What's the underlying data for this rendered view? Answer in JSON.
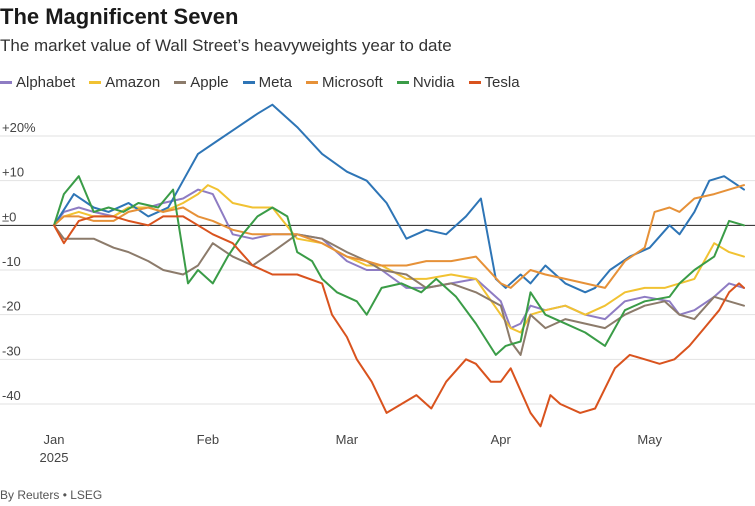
{
  "header": {
    "title": "The Magnificent Seven",
    "subtitle": "The market value of Wall Street’s heavyweights year to date"
  },
  "footer": {
    "source": "By Reuters • LSEG"
  },
  "chart_data": {
    "type": "line",
    "title": "The Magnificent Seven",
    "subtitle": "The market value of Wall Street’s heavyweights year to date",
    "xlabel": "",
    "ylabel": "",
    "x_range": [
      1,
      140
    ],
    "ylim": [
      -45,
      22
    ],
    "y_ticks": [
      {
        "value": 20,
        "label": "+20%"
      },
      {
        "value": 10,
        "label": "+10"
      },
      {
        "value": 0,
        "label": "±0"
      },
      {
        "value": -10,
        "label": "-10"
      },
      {
        "value": -20,
        "label": "-20"
      },
      {
        "value": -30,
        "label": "-30"
      },
      {
        "value": -40,
        "label": "-40"
      }
    ],
    "x_ticks": [
      {
        "day": 1,
        "label": "Jan",
        "sublabel": "2025"
      },
      {
        "day": 32,
        "label": "Feb",
        "sublabel": ""
      },
      {
        "day": 60,
        "label": "Mar",
        "sublabel": ""
      },
      {
        "day": 91,
        "label": "Apr",
        "sublabel": ""
      },
      {
        "day": 121,
        "label": "May",
        "sublabel": ""
      }
    ],
    "x_unit": "day of year 2025",
    "legend_position": "top-left",
    "grid": true,
    "series": [
      {
        "name": "Alphabet",
        "color": "#8e7cc3",
        "x": [
          1,
          3,
          6,
          9,
          13,
          16,
          20,
          23,
          27,
          30,
          33,
          37,
          41,
          45,
          50,
          55,
          60,
          64,
          67,
          72,
          76,
          81,
          86,
          91,
          93,
          95,
          97,
          100,
          104,
          108,
          112,
          116,
          120,
          125,
          127,
          130,
          134,
          137,
          140
        ],
        "y": [
          0,
          3,
          4,
          3,
          2,
          4,
          4,
          5,
          6,
          8,
          7,
          -2,
          -3,
          -2,
          -2,
          -3,
          -8,
          -10,
          -10,
          -14,
          -14,
          -13,
          -12,
          -17,
          -23,
          -22,
          -18,
          -19,
          -18,
          -20,
          -21,
          -17,
          -16,
          -17,
          -20,
          -19,
          -16,
          -13,
          -14
        ]
      },
      {
        "name": "Amazon",
        "color": "#f1c232",
        "x": [
          1,
          3,
          6,
          9,
          13,
          16,
          20,
          23,
          27,
          30,
          32,
          34,
          37,
          41,
          45,
          50,
          55,
          60,
          64,
          67,
          72,
          76,
          81,
          86,
          91,
          93,
          95,
          97,
          100,
          104,
          108,
          112,
          116,
          120,
          124,
          127,
          130,
          134,
          137,
          140
        ],
        "y": [
          0,
          2,
          3,
          2,
          2,
          4,
          4,
          3,
          5,
          7,
          9,
          8,
          5,
          4,
          4,
          -3,
          -4,
          -7,
          -9,
          -9,
          -12,
          -12,
          -11,
          -12,
          -20,
          -23,
          -24,
          -20,
          -19,
          -18,
          -20,
          -18,
          -15,
          -14,
          -14,
          -13,
          -12,
          -4,
          -6,
          -7
        ]
      },
      {
        "name": "Apple",
        "color": "#8c7b6b",
        "x": [
          1,
          3,
          6,
          9,
          13,
          16,
          20,
          23,
          27,
          30,
          33,
          37,
          41,
          45,
          50,
          55,
          60,
          64,
          67,
          72,
          76,
          81,
          86,
          91,
          93,
          95,
          97,
          100,
          104,
          108,
          112,
          116,
          120,
          124,
          127,
          130,
          134,
          137,
          140
        ],
        "y": [
          0,
          -3,
          -3,
          -3,
          -5,
          -6,
          -8,
          -10,
          -11,
          -9,
          -4,
          -7,
          -9,
          -6,
          -2,
          -3,
          -6,
          -8,
          -10,
          -11,
          -14,
          -13,
          -15,
          -18,
          -26,
          -29,
          -20,
          -23,
          -21,
          -22,
          -23,
          -20,
          -18,
          -17,
          -20,
          -21,
          -16,
          -17,
          -18
        ]
      },
      {
        "name": "Meta",
        "color": "#2e75b6",
        "x": [
          1,
          5,
          9,
          12,
          16,
          20,
          24,
          27,
          30,
          34,
          38,
          42,
          45,
          50,
          55,
          60,
          64,
          68,
          72,
          76,
          80,
          84,
          87,
          90,
          92,
          95,
          97,
          100,
          104,
          108,
          110,
          113,
          117,
          121,
          125,
          127,
          130,
          133,
          136,
          140
        ],
        "y": [
          0,
          7,
          4,
          3,
          5,
          2,
          4,
          10,
          16,
          19,
          22,
          25,
          27,
          22,
          16,
          12,
          10,
          5,
          -3,
          -1,
          -2,
          2,
          6,
          -12,
          -14,
          -11,
          -13,
          -9,
          -13,
          -15,
          -14,
          -10,
          -7,
          -5,
          0,
          -2,
          3,
          10,
          11,
          8
        ]
      },
      {
        "name": "Microsoft",
        "color": "#e69138",
        "x": [
          1,
          3,
          6,
          9,
          13,
          16,
          20,
          23,
          27,
          30,
          33,
          37,
          41,
          45,
          50,
          55,
          60,
          64,
          67,
          72,
          76,
          81,
          86,
          91,
          93,
          95,
          97,
          100,
          104,
          108,
          112,
          116,
          120,
          122,
          125,
          127,
          130,
          134,
          137,
          140
        ],
        "y": [
          0,
          2,
          2,
          1,
          1,
          3,
          4,
          3,
          4,
          2,
          1,
          -1,
          -2,
          -2,
          -2,
          -4,
          -7,
          -8,
          -9,
          -9,
          -8,
          -8,
          -7,
          -13,
          -14,
          -12,
          -10,
          -11,
          -12,
          -13,
          -14,
          -8,
          -5,
          3,
          4,
          3,
          6,
          7,
          8,
          9
        ]
      },
      {
        "name": "Nvidia",
        "color": "#3a9c47",
        "x": [
          1,
          3,
          6,
          9,
          12,
          15,
          18,
          22,
          25,
          28,
          30,
          33,
          36,
          39,
          42,
          45,
          48,
          50,
          53,
          55,
          58,
          62,
          64,
          67,
          71,
          75,
          78,
          82,
          86,
          90,
          92,
          95,
          97,
          100,
          104,
          108,
          112,
          116,
          120,
          125,
          127,
          130,
          134,
          137,
          140
        ],
        "y": [
          0,
          7,
          11,
          3,
          4,
          3,
          5,
          4,
          8,
          -13,
          -10,
          -13,
          -7,
          -2,
          2,
          4,
          2,
          -6,
          -8,
          -12,
          -15,
          -17,
          -20,
          -14,
          -13,
          -15,
          -12,
          -16,
          -22,
          -29,
          -27,
          -26,
          -15,
          -20,
          -22,
          -24,
          -27,
          -19,
          -17,
          -16,
          -13,
          -10,
          -7,
          1,
          0
        ]
      },
      {
        "name": "Tesla",
        "color": "#d9531e",
        "x": [
          1,
          3,
          6,
          9,
          13,
          16,
          20,
          23,
          27,
          30,
          33,
          37,
          41,
          45,
          50,
          55,
          57,
          60,
          62,
          65,
          68,
          71,
          74,
          77,
          80,
          84,
          86,
          89,
          91,
          93,
          95,
          97,
          99,
          101,
          103,
          107,
          110,
          114,
          117,
          120,
          123,
          126,
          129,
          132,
          135,
          137,
          139,
          140
        ],
        "y": [
          0,
          -4,
          1,
          2,
          2,
          1,
          0,
          2,
          2,
          0,
          -2,
          -4,
          -9,
          -11,
          -11,
          -13,
          -20,
          -25,
          -30,
          -35,
          -42,
          -40,
          -38,
          -41,
          -35,
          -30,
          -31,
          -35,
          -35,
          -32,
          -37,
          -42,
          -45,
          -38,
          -40,
          -42,
          -41,
          -32,
          -29,
          -30,
          -31,
          -30,
          -27,
          -23,
          -19,
          -15,
          -13,
          -14
        ]
      }
    ]
  }
}
